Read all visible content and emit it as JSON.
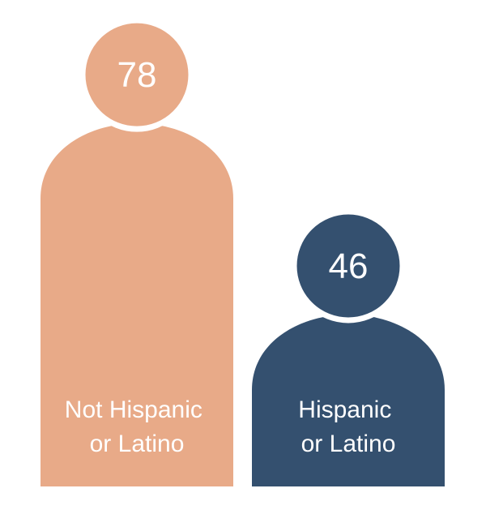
{
  "chart_data": {
    "type": "bar",
    "categories": [
      "Not Hispanic or Latino",
      "Hispanic or Latino"
    ],
    "values": [
      78,
      46
    ],
    "colors": [
      "#e8aa88",
      "#34506f"
    ]
  }
}
